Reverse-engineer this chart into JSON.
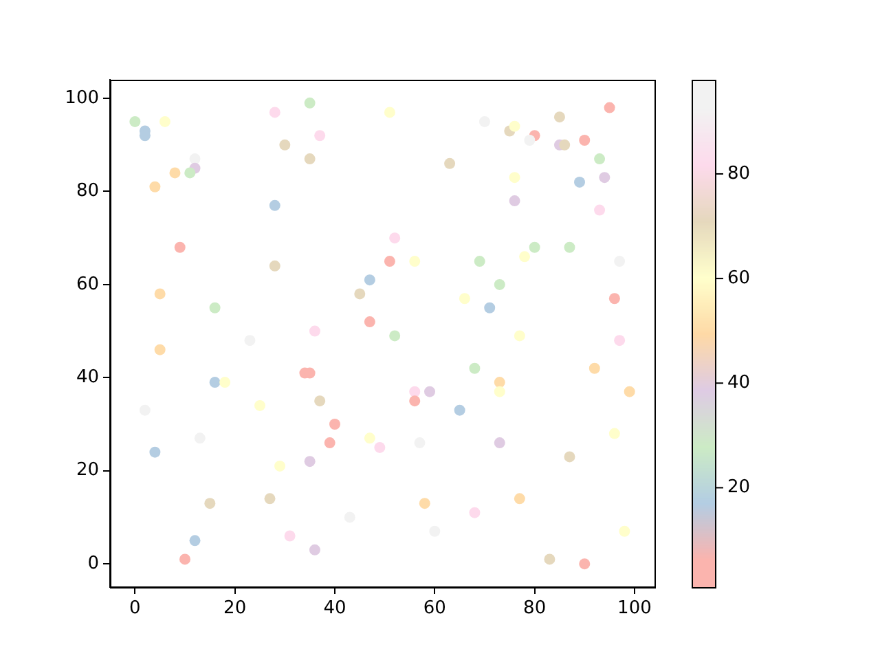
{
  "chart_data": {
    "type": "scatter",
    "x": [
      0,
      2,
      2,
      6,
      28,
      35,
      37,
      30,
      35,
      12,
      12,
      8,
      11,
      4,
      28,
      9,
      28,
      47,
      5,
      45,
      16,
      47,
      36,
      23,
      51,
      70,
      75,
      76,
      80,
      79,
      85,
      95,
      85,
      86,
      90,
      93,
      94,
      89,
      63,
      76,
      76,
      93,
      52,
      51,
      56,
      69,
      80,
      78,
      87,
      97,
      73,
      66,
      71,
      96,
      52,
      77,
      97,
      5,
      34,
      35,
      16,
      18,
      2,
      25,
      37,
      40,
      39,
      4,
      13,
      47,
      29,
      35,
      15,
      27,
      43,
      31,
      36,
      12,
      10,
      68,
      92,
      73,
      73,
      56,
      59,
      56,
      65,
      99,
      49,
      57,
      73,
      96,
      87,
      58,
      68,
      77,
      60,
      98,
      83,
      90
    ],
    "values": [
      95,
      93,
      92,
      95,
      97,
      99,
      92,
      90,
      87,
      87,
      85,
      84,
      84,
      81,
      77,
      68,
      64,
      61,
      58,
      58,
      55,
      52,
      50,
      48,
      97,
      95,
      93,
      94,
      92,
      91,
      96,
      98,
      90,
      90,
      91,
      87,
      83,
      82,
      86,
      83,
      78,
      76,
      70,
      65,
      65,
      65,
      68,
      66,
      68,
      65,
      60,
      57,
      55,
      57,
      49,
      49,
      48,
      46,
      41,
      41,
      39,
      39,
      33,
      34,
      35,
      30,
      26,
      24,
      27,
      27,
      21,
      22,
      13,
      14,
      10,
      6,
      3,
      5,
      1,
      42,
      42,
      39,
      37,
      37,
      37,
      35,
      33,
      37,
      25,
      26,
      26,
      28,
      23,
      13,
      11,
      14,
      7,
      7,
      1,
      0
    ],
    "cvalues": [
      28,
      17,
      17,
      60,
      82,
      28,
      82,
      71,
      71,
      93,
      39,
      50,
      28,
      50,
      17,
      6,
      71,
      17,
      50,
      71,
      28,
      6,
      82,
      93,
      60,
      93,
      71,
      60,
      6,
      93,
      71,
      6,
      39,
      71,
      6,
      28,
      39,
      17,
      71,
      60,
      39,
      82,
      82,
      6,
      60,
      28,
      28,
      60,
      28,
      93,
      28,
      60,
      17,
      6,
      28,
      60,
      82,
      50,
      6,
      6,
      17,
      60,
      93,
      60,
      71,
      6,
      6,
      17,
      93,
      60,
      60,
      39,
      71,
      71,
      93,
      82,
      39,
      17,
      6,
      28,
      50,
      50,
      60,
      82,
      39,
      6,
      17,
      50,
      82,
      93,
      39,
      60,
      71,
      50,
      82,
      50,
      93,
      60,
      71,
      6
    ],
    "clim": [
      1,
      98
    ],
    "cticks": [
      20,
      40,
      60,
      80
    ],
    "xlim": [
      -5,
      104
    ],
    "xticks": [
      0,
      20,
      40,
      60,
      80,
      100
    ],
    "ylim": [
      -5,
      104
    ],
    "yticks": [
      0,
      20,
      40,
      60,
      80,
      100
    ],
    "marker": "circle",
    "grid": false,
    "legend": false
  }
}
